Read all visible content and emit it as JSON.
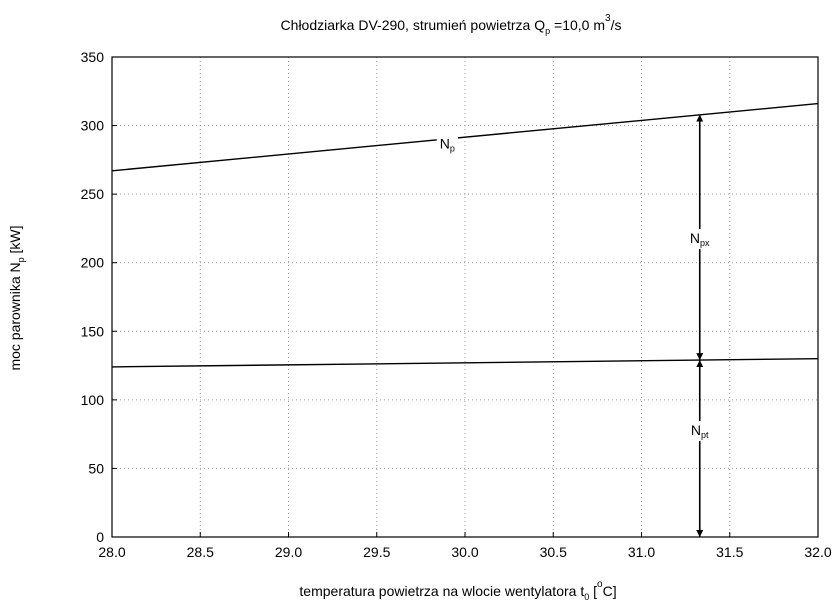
{
  "chart_data": {
    "type": "line",
    "title": {
      "main": "Chłodziarka DV-290, strumień powietrza Q",
      "sub": "p",
      "mid": " =10,0 m",
      "sup": "3",
      "tail": "/s"
    },
    "xlabel": {
      "main": "temperatura powietrza na wlocie wentylatora t",
      "sub": "0",
      "mid": " [",
      "sup": "o",
      "tail": "C]"
    },
    "ylabel": {
      "main": "moc parownika N",
      "sub": "p",
      "tail": " [kW]"
    },
    "xlim": [
      28.0,
      32.0
    ],
    "ylim": [
      0,
      350
    ],
    "x_ticks": [
      "28.0",
      "28.5",
      "29.0",
      "29.5",
      "30.0",
      "30.5",
      "31.0",
      "31.5",
      "32.0"
    ],
    "y_ticks": [
      "0",
      "50",
      "100",
      "150",
      "200",
      "250",
      "300",
      "350"
    ],
    "grid": true,
    "series": [
      {
        "x": [
          28.0,
          32.0
        ],
        "y": [
          267,
          316
        ]
      },
      {
        "x": [
          28.0,
          32.0
        ],
        "y": [
          124,
          130
        ]
      }
    ],
    "annotations": [
      {
        "text": "N",
        "sub": "p",
        "x": 29.9,
        "y": 287
      },
      {
        "text": "N",
        "sub": "px",
        "x": 31.33,
        "y": 218
      },
      {
        "text": "N",
        "sub": "pt",
        "x": 31.33,
        "y": 78
      }
    ],
    "arrows": [
      {
        "x": 31.33,
        "from": 308,
        "to": 129
      },
      {
        "x": 31.33,
        "from": 129,
        "to": 0
      }
    ]
  }
}
